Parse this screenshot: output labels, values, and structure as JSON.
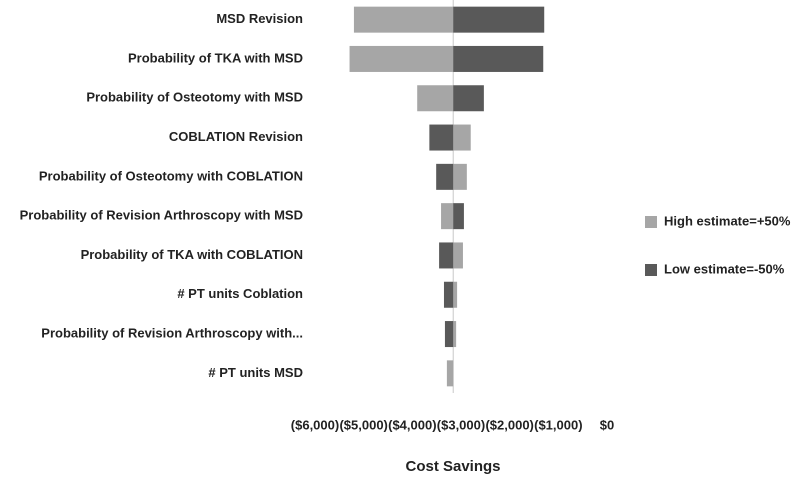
{
  "chart_data": {
    "type": "tornado",
    "x_label": "Cost Savings",
    "categories": [
      "MSD Revision",
      "Probability of TKA with MSD",
      "Probability of Osteotomy with MSD",
      "COBLATION Revision",
      "Probability of Osteotomy with COBLATION",
      "Probability of Revision Arthroscopy with MSD",
      "Probability of TKA with COBLATION",
      "# PT units Coblation",
      "Probability of Revision Arthroscopy with...",
      "# PT units  MSD"
    ],
    "baseline": -3160,
    "series": [
      {
        "name": "High estimate=+50%",
        "color": "#a6a6a6",
        "values": [
          -5200,
          -5290,
          -3900,
          -2800,
          -2880,
          -3410,
          -2960,
          -3080,
          -3100,
          -3290
        ]
      },
      {
        "name": "Low estimate=-50%",
        "color": "#595959",
        "values": [
          -1290,
          -1310,
          -2530,
          -3650,
          -3510,
          -2940,
          -3450,
          -3350,
          -3330,
          -3160
        ]
      }
    ],
    "xlim": [
      -6000,
      0
    ],
    "xticks": [
      {
        "value": -6000,
        "label": "($6,000)"
      },
      {
        "value": -5000,
        "label": "($5,000)"
      },
      {
        "value": -4000,
        "label": "($4,000)"
      },
      {
        "value": -3000,
        "label": "($3,000)"
      },
      {
        "value": -2000,
        "label": "($2,000)"
      },
      {
        "value": -1000,
        "label": "($1,000)"
      },
      {
        "value": 0,
        "label": "$0"
      }
    ],
    "legend": "right"
  }
}
